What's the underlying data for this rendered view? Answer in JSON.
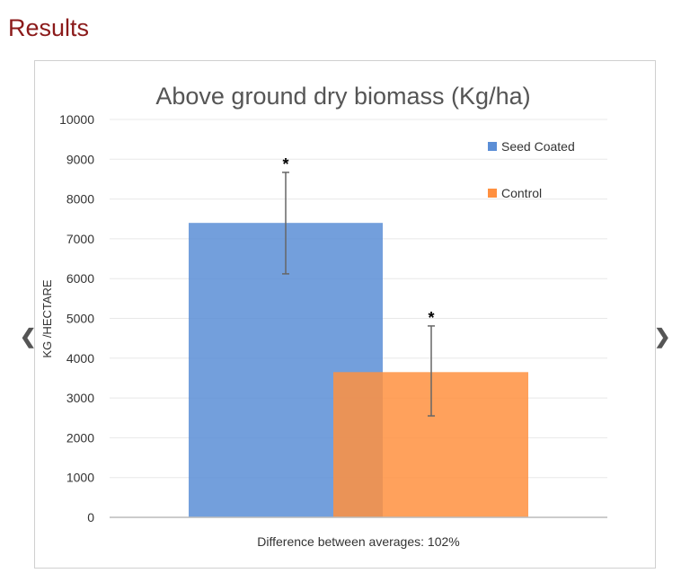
{
  "heading": "Results",
  "nav": {
    "prev_icon": "chevron-left-icon",
    "next_icon": "chevron-right-icon"
  },
  "chart_data": {
    "type": "bar",
    "title": "Above ground dry biomass (Kg/ha)",
    "xlabel": "Difference between averages: 102%",
    "ylabel": "KG /HECTARE",
    "ylim": [
      0,
      10000
    ],
    "yticks": [
      0,
      1000,
      2000,
      3000,
      4000,
      5000,
      6000,
      7000,
      8000,
      9000,
      10000
    ],
    "grid": true,
    "legend_position": "top-right",
    "series": [
      {
        "name": "Seed Coated",
        "value": 7400,
        "error_low": 6120,
        "error_high": 8670,
        "annotation": "*",
        "color": "#5b8ed6"
      },
      {
        "name": "Control",
        "value": 3650,
        "error_low": 2550,
        "error_high": 4810,
        "annotation": "*",
        "color": "#ff9040"
      }
    ]
  }
}
